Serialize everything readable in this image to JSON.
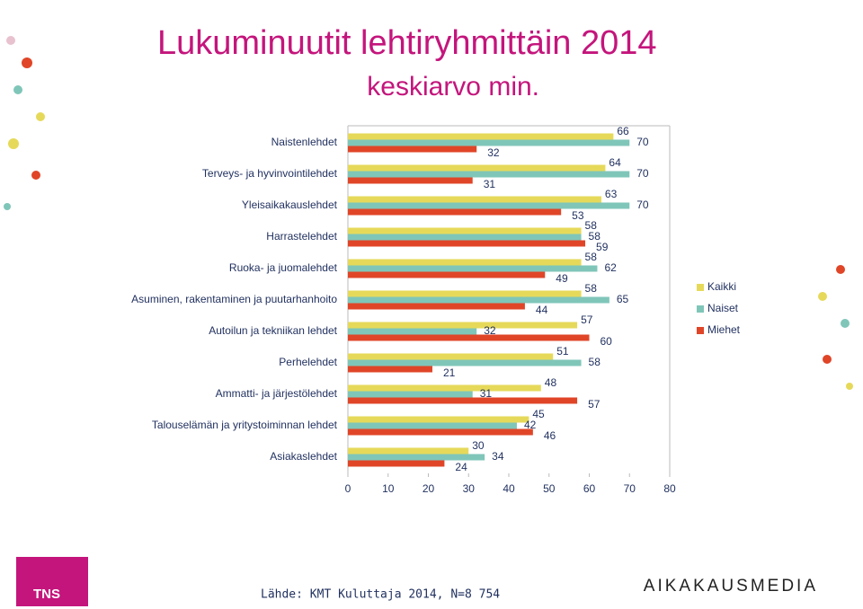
{
  "chart_data": {
    "type": "bar",
    "orientation": "horizontal",
    "title": "Lukuminuutit lehtiryhmittäin 2014",
    "subtitle": "keskiarvo min.",
    "categories": [
      "Naistenlehdet",
      "Terveys- ja hyvinvointilehdet",
      "Yleisaikakauslehdet",
      "Harrastelehdet",
      "Ruoka- ja juomalehdet",
      "Asuminen, rakentaminen ja puutarhanhoito",
      "Autoilun ja tekniikan lehdet",
      "Perhelehdet",
      "Ammatti- ja järjestölehdet",
      "Talouselämän ja yritystoiminnan lehdet",
      "Asiakaslehdet"
    ],
    "series": [
      {
        "name": "Kaikki",
        "color": "#e6d95a",
        "values": [
          66,
          64,
          63,
          58,
          58,
          58,
          57,
          51,
          48,
          45,
          30
        ]
      },
      {
        "name": "Naiset",
        "color": "#7fc6b9",
        "values": [
          70,
          70,
          70,
          58,
          62,
          65,
          32,
          58,
          31,
          42,
          34
        ]
      },
      {
        "name": "Miehet",
        "color": "#e04528",
        "values": [
          32,
          31,
          53,
          59,
          49,
          44,
          60,
          21,
          57,
          46,
          24
        ]
      }
    ],
    "xlim": [
      0,
      80
    ],
    "xticks": [
      0,
      10,
      20,
      30,
      40,
      50,
      60,
      70,
      80
    ],
    "legend": "right",
    "grid": false,
    "source": "Lähde: KMT Kuluttaja 2014, N=8 754"
  },
  "logos": [
    "TNS",
    "AIKAKAUSMEDIA"
  ]
}
